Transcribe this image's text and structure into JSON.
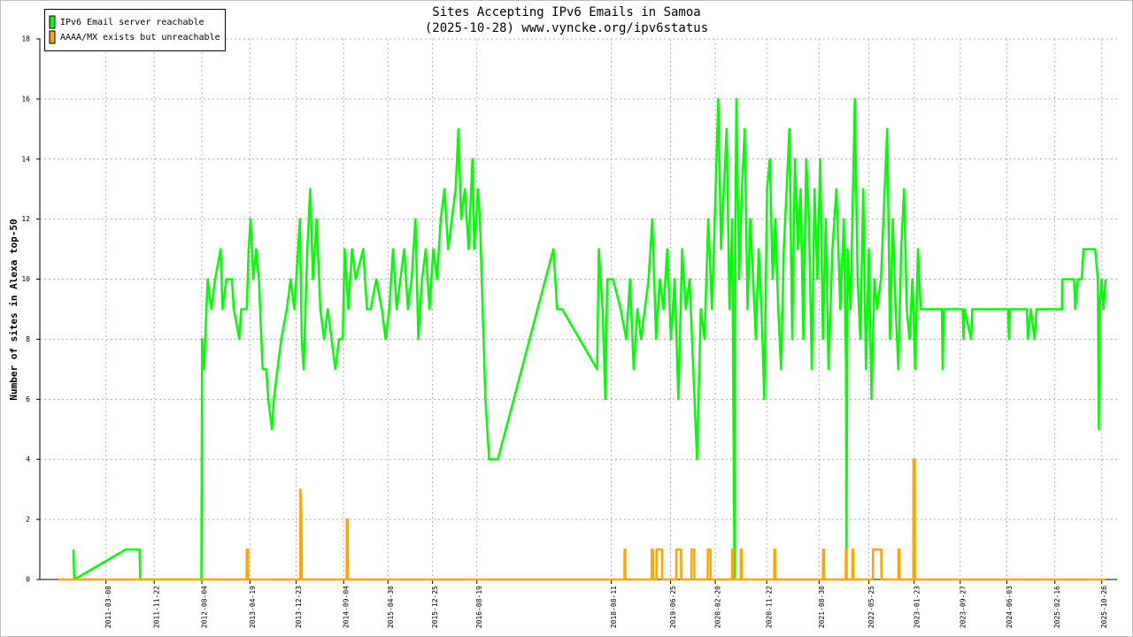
{
  "chart_data": {
    "type": "line",
    "title": "Sites Accepting IPv6 Emails in Samoa",
    "subtitle": "(2025-10-28) www.vyncke.org/ipv6status",
    "y_label": "Number of sites in Alexa top-50",
    "xlim": [
      "2010-03-18",
      "2026-01-16"
    ],
    "xticks": [
      "2011-03-08",
      "2011-11-22",
      "2012-08-04",
      "2013-04-19",
      "2013-12-23",
      "2014-09-04",
      "2015-04-30",
      "2015-12-25",
      "2016-08-19",
      "2018-08-11",
      "2019-06-25",
      "2020-02-20",
      "2020-11-22",
      "2021-08-30",
      "2022-05-25",
      "2023-01-23",
      "2023-09-27",
      "2024-06-03",
      "2025-02-16",
      "2025-10-26"
    ],
    "ylim": [
      0,
      18
    ],
    "yticks": [
      0,
      2,
      4,
      6,
      8,
      10,
      12,
      14,
      16,
      18
    ],
    "grid": true,
    "legend": "top-left",
    "series": [
      {
        "name": "IPv6 Email server reachable",
        "color": "#00ff00",
        "x": [
          "2010-09-14",
          "2010-09-19",
          "2011-06-22",
          "2011-09-04",
          "2011-09-08",
          "2012-08-01",
          "2012-08-05",
          "2012-08-15",
          "2012-09-04",
          "2012-09-24",
          "2012-10-14",
          "2012-11-13",
          "2012-11-23",
          "2012-12-13",
          "2013-01-12",
          "2013-01-22",
          "2013-02-21",
          "2013-03-03",
          "2013-04-02",
          "2013-04-12",
          "2013-04-22",
          "2013-05-07",
          "2013-05-22",
          "2013-06-06",
          "2013-06-26",
          "2013-07-16",
          "2013-07-26",
          "2013-08-15",
          "2013-08-25",
          "2013-09-14",
          "2013-10-04",
          "2013-11-03",
          "2013-11-23",
          "2013-12-13",
          "2014-01-02",
          "2014-01-12",
          "2014-01-22",
          "2014-02-01",
          "2014-02-21",
          "2014-03-08",
          "2014-03-23",
          "2014-04-12",
          "2014-05-02",
          "2014-05-22",
          "2014-06-11",
          "2014-07-01",
          "2014-07-21",
          "2014-08-10",
          "2014-08-30",
          "2014-09-09",
          "2014-09-29",
          "2014-10-19",
          "2014-11-08",
          "2014-12-18",
          "2015-01-07",
          "2015-01-27",
          "2015-02-26",
          "2015-03-28",
          "2015-04-17",
          "2015-05-07",
          "2015-05-27",
          "2015-06-16",
          "2015-07-06",
          "2015-07-26",
          "2015-08-15",
          "2015-09-04",
          "2015-09-24",
          "2015-10-10",
          "2015-10-30",
          "2015-11-19",
          "2015-12-09",
          "2015-12-29",
          "2016-01-18",
          "2016-02-07",
          "2016-02-27",
          "2016-03-18",
          "2016-04-07",
          "2016-04-27",
          "2016-05-12",
          "2016-05-27",
          "2016-06-16",
          "2016-07-06",
          "2016-07-26",
          "2016-08-05",
          "2016-08-15",
          "2016-08-25",
          "2016-09-04",
          "2016-09-14",
          "2016-10-04",
          "2016-10-24",
          "2016-12-10",
          "2017-10-04",
          "2017-10-24",
          "2017-11-20",
          "2018-05-27",
          "2018-06-05",
          "2018-06-25",
          "2018-07-10",
          "2018-07-20",
          "2018-08-20",
          "2018-09-30",
          "2018-10-30",
          "2018-11-19",
          "2018-12-09",
          "2018-12-29",
          "2019-01-18",
          "2019-02-07",
          "2019-02-27",
          "2019-03-19",
          "2019-04-08",
          "2019-04-28",
          "2019-05-18",
          "2019-06-07",
          "2019-06-27",
          "2019-07-17",
          "2019-08-06",
          "2019-08-26",
          "2019-09-15",
          "2019-10-05",
          "2019-10-25",
          "2019-11-14",
          "2019-12-04",
          "2019-12-24",
          "2020-01-13",
          "2020-02-02",
          "2020-02-22",
          "2020-03-07",
          "2020-03-22",
          "2020-04-06",
          "2020-04-21",
          "2020-05-06",
          "2020-05-21",
          "2020-06-02",
          "2020-06-07",
          "2020-06-12",
          "2020-06-27",
          "2020-07-12",
          "2020-07-27",
          "2020-08-11",
          "2020-08-26",
          "2020-09-10",
          "2020-09-25",
          "2020-10-10",
          "2020-10-25",
          "2020-11-09",
          "2020-11-24",
          "2020-12-09",
          "2020-12-24",
          "2021-01-08",
          "2021-01-23",
          "2021-02-07",
          "2021-02-22",
          "2021-03-09",
          "2021-03-24",
          "2021-04-08",
          "2021-04-23",
          "2021-05-08",
          "2021-05-23",
          "2021-06-07",
          "2021-06-22",
          "2021-07-07",
          "2021-07-22",
          "2021-08-06",
          "2021-08-21",
          "2021-09-05",
          "2021-09-20",
          "2021-10-05",
          "2021-10-20",
          "2021-11-10",
          "2021-12-01",
          "2021-12-22",
          "2022-01-10",
          "2022-01-22",
          "2022-01-24",
          "2022-01-30",
          "2022-02-15",
          "2022-03-10",
          "2022-03-25",
          "2022-04-09",
          "2022-04-24",
          "2022-05-09",
          "2022-05-24",
          "2022-06-08",
          "2022-06-23",
          "2022-07-08",
          "2022-07-28",
          "2022-08-31",
          "2022-09-15",
          "2022-09-30",
          "2022-10-15",
          "2022-10-30",
          "2022-11-14",
          "2022-11-29",
          "2022-12-14",
          "2022-12-29",
          "2023-01-13",
          "2023-01-28",
          "2023-02-12",
          "2023-02-27",
          "2023-04-26",
          "2023-06-20",
          "2023-06-25",
          "2023-06-30",
          "2023-10-10",
          "2023-10-15",
          "2023-10-20",
          "2023-11-25",
          "2023-11-30",
          "2024-06-10",
          "2024-06-15",
          "2024-06-20",
          "2024-09-19",
          "2024-09-24",
          "2024-10-10",
          "2024-10-30",
          "2024-11-10",
          "2025-03-26",
          "2025-03-28",
          "2025-05-30",
          "2025-06-05",
          "2025-06-20",
          "2025-07-10",
          "2025-07-20",
          "2025-08-25",
          "2025-09-20",
          "2025-10-05",
          "2025-10-10",
          "2025-10-15",
          "2025-10-25",
          "2025-11-05",
          "2025-11-15"
        ],
        "values": [
          1,
          0,
          1,
          1,
          0,
          0,
          8,
          7,
          10,
          9,
          10,
          11,
          9,
          10,
          10,
          9,
          8,
          9,
          9,
          11,
          12,
          10,
          11,
          10,
          7,
          7,
          6,
          5,
          6,
          7,
          8,
          9,
          10,
          9,
          11,
          12,
          8,
          7,
          11,
          13,
          10,
          12,
          9,
          8,
          9,
          8,
          7,
          8,
          8,
          11,
          9,
          11,
          10,
          11,
          9,
          9,
          10,
          9,
          8,
          9,
          11,
          9,
          10,
          11,
          9,
          10,
          12,
          8,
          10,
          11,
          9,
          11,
          10,
          12,
          13,
          11,
          12,
          13,
          15,
          12,
          13,
          11,
          14,
          11,
          12,
          13,
          12,
          10,
          6,
          4,
          4,
          11,
          9,
          9,
          7,
          11,
          9,
          6,
          10,
          10,
          9,
          8,
          10,
          7,
          9,
          8,
          9,
          10,
          12,
          8,
          10,
          9,
          11,
          8,
          10,
          6,
          11,
          9,
          10,
          7,
          4,
          9,
          8,
          12,
          9,
          13,
          16,
          11,
          13,
          15,
          9,
          12,
          0,
          12,
          16,
          10,
          13,
          15,
          9,
          12,
          10,
          8,
          11,
          9,
          6,
          13,
          14,
          10,
          12,
          9,
          7,
          11,
          13,
          15,
          8,
          14,
          11,
          13,
          8,
          14,
          12,
          7,
          13,
          10,
          14,
          8,
          12,
          7,
          11,
          13,
          9,
          12,
          7,
          0,
          11,
          9,
          16,
          10,
          8,
          13,
          7,
          11,
          6,
          10,
          9,
          10,
          15,
          8,
          12,
          9,
          7,
          11,
          13,
          9,
          8,
          10,
          7,
          11,
          9,
          9,
          9,
          7,
          9,
          9,
          8,
          9,
          8,
          9,
          9,
          8,
          9,
          9,
          8,
          9,
          8,
          9,
          9,
          10,
          10,
          9,
          10,
          10,
          11,
          11,
          11,
          10,
          5,
          9,
          10,
          9,
          10
        ]
      },
      {
        "name": "AAAA/MX exists but unreachable",
        "color": "#ffa500",
        "x": [
          "2010-06-25",
          "2013-04-01",
          "2013-04-02",
          "2013-04-08",
          "2013-04-09",
          "2014-01-14",
          "2014-01-15",
          "2014-01-20",
          "2014-01-22",
          "2014-09-20",
          "2014-09-21",
          "2014-09-26",
          "2014-09-27",
          "2018-10-20",
          "2018-10-21",
          "2018-10-25",
          "2018-10-26",
          "2019-03-15",
          "2019-03-16",
          "2019-03-22",
          "2019-03-23",
          "2019-04-10",
          "2019-04-11",
          "2019-05-10",
          "2019-05-11",
          "2019-07-25",
          "2019-07-26",
          "2019-08-20",
          "2019-08-21",
          "2019-10-15",
          "2019-10-16",
          "2019-10-30",
          "2019-10-31",
          "2020-01-10",
          "2020-01-11",
          "2020-01-25",
          "2020-01-26",
          "2020-05-20",
          "2020-05-21",
          "2020-05-25",
          "2020-05-26",
          "2020-07-05",
          "2020-07-06",
          "2020-07-10",
          "2020-07-11",
          "2021-01-01",
          "2021-01-02",
          "2021-01-06",
          "2021-01-07",
          "2021-09-20",
          "2021-09-21",
          "2021-09-26",
          "2021-09-27",
          "2022-01-20",
          "2022-01-21",
          "2022-01-25",
          "2022-01-26",
          "2022-02-25",
          "2022-02-26",
          "2022-03-02",
          "2022-03-03",
          "2022-06-15",
          "2022-06-16",
          "2022-07-30",
          "2022-07-31",
          "2022-10-30",
          "2022-10-31",
          "2022-11-05",
          "2022-11-06",
          "2023-01-18",
          "2023-01-19",
          "2023-01-26",
          "2023-01-27",
          "2025-11-15"
        ],
        "values": [
          0,
          0,
          1,
          1,
          0,
          0,
          3,
          2,
          0,
          0,
          2,
          2,
          0,
          0,
          1,
          1,
          0,
          0,
          1,
          1,
          0,
          0,
          1,
          1,
          0,
          0,
          1,
          1,
          0,
          0,
          1,
          1,
          0,
          0,
          1,
          1,
          0,
          0,
          1,
          1,
          0,
          0,
          1,
          1,
          0,
          0,
          1,
          1,
          0,
          0,
          1,
          1,
          0,
          0,
          1,
          1,
          0,
          0,
          1,
          1,
          0,
          0,
          1,
          1,
          0,
          0,
          1,
          1,
          0,
          0,
          4,
          4,
          0,
          0
        ]
      }
    ]
  }
}
